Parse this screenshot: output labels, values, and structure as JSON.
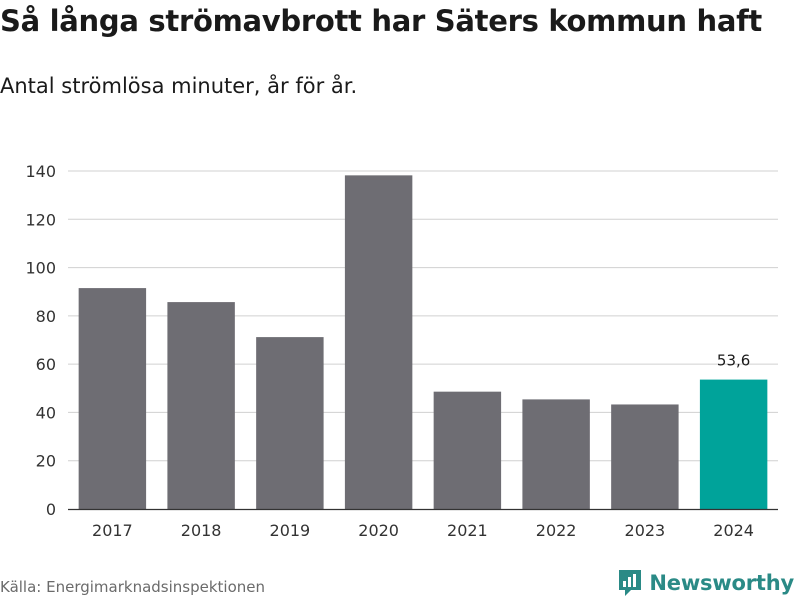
{
  "title": "Så långa strömavbrott har Säters kommun haft",
  "subtitle": "Antal strömlösa minuter, år för år.",
  "source": "Källa: Energimarknadsinspektionen",
  "brand": "Newsworthy",
  "colors": {
    "bar": "#6e6d73",
    "highlight": "#00a39a",
    "grid": "#d0d0d0",
    "axis": "#333333",
    "brand": "#2a8a86"
  },
  "chart_data": {
    "type": "bar",
    "categories": [
      "2017",
      "2018",
      "2019",
      "2020",
      "2021",
      "2022",
      "2023",
      "2024"
    ],
    "values": [
      91.5,
      85.7,
      71.2,
      138.2,
      48.6,
      45.4,
      43.3,
      53.6
    ],
    "highlight_index": 7,
    "data_labels": [
      {
        "index": 7,
        "text": "53,6"
      }
    ],
    "yticks": [
      0,
      20,
      40,
      60,
      80,
      100,
      120,
      140
    ],
    "ylim": [
      0,
      140
    ],
    "xlabel": "",
    "ylabel": "",
    "grid": true
  }
}
